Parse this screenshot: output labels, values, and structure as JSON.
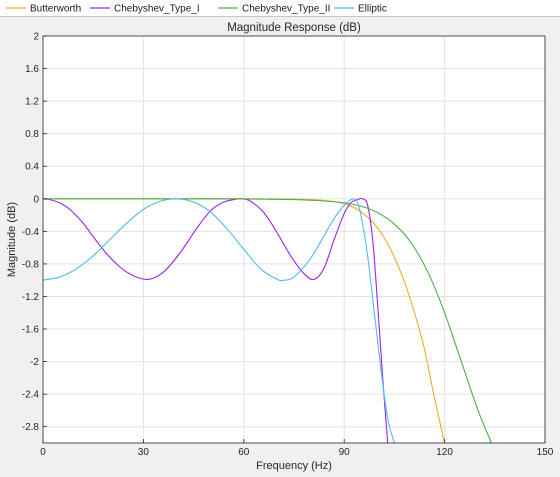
{
  "chart_data": {
    "type": "line",
    "title": "Magnitude Response (dB)",
    "xlabel": "Frequency (Hz)",
    "ylabel": "Magnitude (dB)",
    "xlim": [
      0,
      150
    ],
    "ylim": [
      -3,
      2
    ],
    "grid": true,
    "legend_position": "top",
    "x_ticks": [
      0,
      30,
      60,
      90,
      120,
      150
    ],
    "x_tick_labels": [
      "0",
      "30",
      "60",
      "90",
      "120",
      "150"
    ],
    "y_ticks": [
      2,
      1.6,
      1.2,
      0.8,
      0.4,
      0,
      -0.4,
      -0.8,
      -1.2,
      -1.6,
      -2,
      -2.4,
      -2.8
    ],
    "y_tick_labels": [
      "2",
      "1.6",
      "1.2",
      "0.8",
      "0.4",
      "0",
      "-0.4",
      "-0.8",
      "-1.2",
      "-1.6",
      "-2",
      "-2.4",
      "-2.8"
    ],
    "series": [
      {
        "name": "Butterworth",
        "color": "#edb120",
        "x": [
          0,
          20,
          40,
          60,
          70,
          80,
          85,
          90,
          93,
          96,
          99,
          102,
          105,
          108,
          111,
          114,
          117,
          120
        ],
        "y": [
          0,
          0,
          0,
          0,
          -0.002,
          -0.01,
          -0.025,
          -0.06,
          -0.11,
          -0.19,
          -0.31,
          -0.48,
          -0.72,
          -1.02,
          -1.4,
          -1.85,
          -2.45,
          -3.0
        ]
      },
      {
        "name": "Chebyshev_Type_I",
        "color": "#a020f0",
        "x": [
          0,
          2,
          5,
          8,
          12,
          16,
          20,
          25,
          31,
          36,
          41,
          46,
          50,
          54,
          58,
          59.5,
          62,
          66,
          70,
          74,
          78,
          81,
          84,
          87,
          90,
          92,
          94,
          95.5,
          97,
          98.5,
          100,
          101.5,
          103
        ],
        "y": [
          0,
          -0.01,
          -0.05,
          -0.13,
          -0.3,
          -0.52,
          -0.72,
          -0.9,
          -0.99,
          -0.9,
          -0.66,
          -0.36,
          -0.15,
          -0.04,
          -0.003,
          0,
          -0.03,
          -0.17,
          -0.42,
          -0.7,
          -0.92,
          -0.99,
          -0.85,
          -0.5,
          -0.18,
          -0.05,
          -0.01,
          0,
          -0.08,
          -0.5,
          -1.3,
          -2.2,
          -3.0
        ]
      },
      {
        "name": "Chebyshev_Type_II",
        "color": "#4daf4a",
        "x": [
          0,
          20,
          40,
          60,
          75,
          85,
          90,
          95,
          100,
          105,
          110,
          115,
          120,
          125,
          130,
          134
        ],
        "y": [
          0,
          0,
          0,
          -0.002,
          -0.01,
          -0.03,
          -0.05,
          -0.09,
          -0.17,
          -0.31,
          -0.54,
          -0.9,
          -1.4,
          -2.0,
          -2.6,
          -3.0
        ]
      },
      {
        "name": "Elliptic",
        "color": "#4dbeee",
        "x": [
          0,
          5,
          10,
          15,
          20,
          25,
          30,
          35,
          40,
          45,
          50,
          55,
          60,
          65,
          70,
          72,
          75,
          80,
          85,
          88,
          91,
          93,
          94,
          95,
          97,
          99,
          101,
          103,
          105
        ],
        "y": [
          -1.0,
          -0.96,
          -0.86,
          -0.7,
          -0.5,
          -0.3,
          -0.13,
          -0.03,
          0,
          -0.04,
          -0.16,
          -0.37,
          -0.62,
          -0.86,
          -0.99,
          -1.0,
          -0.96,
          -0.73,
          -0.38,
          -0.18,
          -0.04,
          0,
          -0.05,
          -0.2,
          -0.7,
          -1.4,
          -2.1,
          -2.7,
          -3.0
        ]
      }
    ]
  }
}
